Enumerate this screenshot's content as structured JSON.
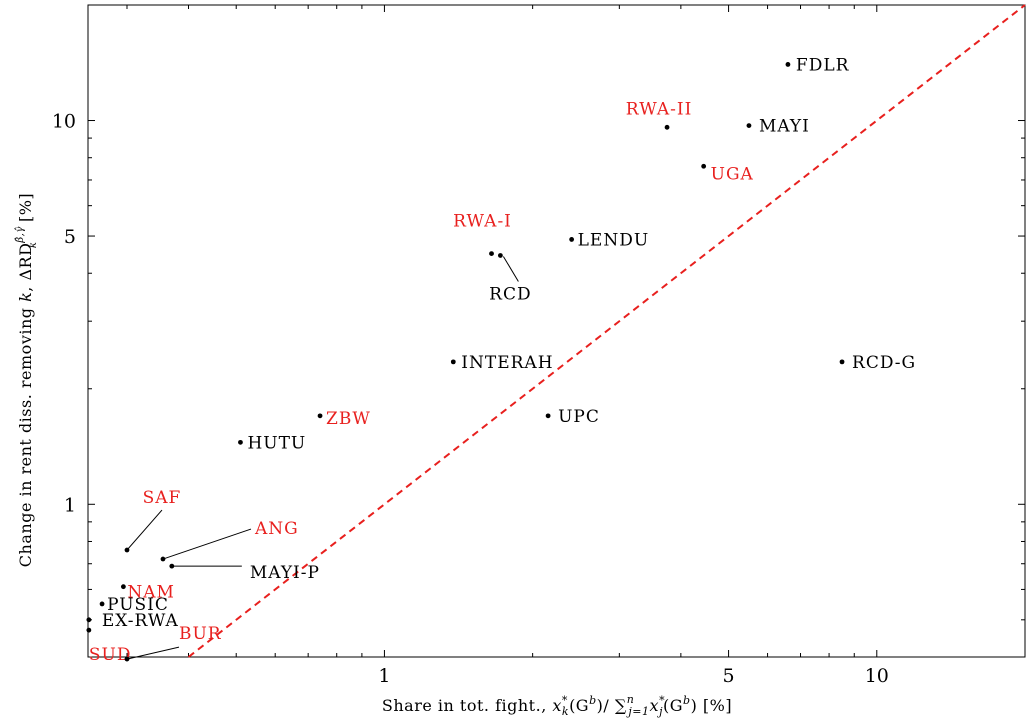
{
  "chart_data": {
    "type": "scatter",
    "xlabel": "Share in tot. fight., x*_k(G^b) / Σ_{j=1}^n x*_j(G^b) [%]",
    "ylabel": "Change in rent diss. removing k, ΔRD_k^{β̂,γ̂} [%]",
    "xlabel_parts": {
      "lead": "Share in tot. fight., ",
      "num_x": "x",
      "num_sup": "*",
      "num_sub": "k",
      "num_arg": "(G",
      "num_arg_sup": "b",
      "num_close": ")",
      "slash": "/ ",
      "sum": "∑",
      "sum_sup": "n",
      "sum_sub": "j=1",
      "den_x": "x",
      "den_sup": "*",
      "den_sub": "j",
      "den_arg": "(G",
      "den_arg_sup": "b",
      "den_close": ")",
      "unit": " [%]"
    },
    "ylabel_parts": {
      "lead": "Change in rent diss. removing ",
      "k": "k",
      "comma": ", ",
      "delta": "ΔRD",
      "sup": "β̂,γ̂",
      "sub": "k",
      "unit": " [%]"
    },
    "x_scale": "log",
    "y_scale": "log",
    "xlim": [
      0.25,
      20
    ],
    "ylim": [
      0.4,
      20
    ],
    "x_ticks": [
      1,
      5,
      10
    ],
    "y_ticks": [
      1,
      5,
      10
    ],
    "x_tick_labels": [
      "1",
      "5",
      "10"
    ],
    "y_tick_labels": [
      "1",
      "5",
      "10"
    ],
    "grid": false,
    "reference_line": {
      "style": "dashed",
      "color": "#e8201e",
      "equation": "y = x"
    },
    "colors": {
      "highlight": "#e8201e",
      "default": "#000000"
    },
    "points": [
      {
        "label": "FDLR",
        "x": 6.6,
        "y": 14.0,
        "highlight": false
      },
      {
        "label": "MAYI",
        "x": 5.5,
        "y": 9.7,
        "highlight": false
      },
      {
        "label": "RWA-II",
        "x": 3.75,
        "y": 9.6,
        "highlight": true
      },
      {
        "label": "UGA",
        "x": 4.45,
        "y": 7.6,
        "highlight": true
      },
      {
        "label": "LENDU",
        "x": 2.4,
        "y": 4.9,
        "highlight": false
      },
      {
        "label": "RWA-I",
        "x": 1.65,
        "y": 4.5,
        "highlight": true
      },
      {
        "label": "RCD",
        "x": 1.72,
        "y": 4.45,
        "highlight": false
      },
      {
        "label": "INTERAH",
        "x": 1.38,
        "y": 2.35,
        "highlight": false
      },
      {
        "label": "RCD-G",
        "x": 8.5,
        "y": 2.35,
        "highlight": false
      },
      {
        "label": "UPC",
        "x": 2.15,
        "y": 1.7,
        "highlight": false
      },
      {
        "label": "ZBW",
        "x": 0.74,
        "y": 1.7,
        "highlight": true
      },
      {
        "label": "HUTU",
        "x": 0.51,
        "y": 1.45,
        "highlight": false
      },
      {
        "label": "SAF",
        "x": 0.3,
        "y": 0.76,
        "highlight": true
      },
      {
        "label": "ANG",
        "x": 0.355,
        "y": 0.72,
        "highlight": true
      },
      {
        "label": "MAYI-P",
        "x": 0.37,
        "y": 0.69,
        "highlight": false
      },
      {
        "label": "NAM",
        "x": 0.295,
        "y": 0.61,
        "highlight": true
      },
      {
        "label": "PUSIC",
        "x": 0.267,
        "y": 0.55,
        "highlight": false
      },
      {
        "label": "EX-RWA",
        "x": 0.251,
        "y": 0.5,
        "highlight": false
      },
      {
        "label": "SUD",
        "x": 0.251,
        "y": 0.47,
        "highlight": true
      },
      {
        "label": "BUR",
        "x": 0.3,
        "y": 0.395,
        "highlight": true
      }
    ]
  }
}
